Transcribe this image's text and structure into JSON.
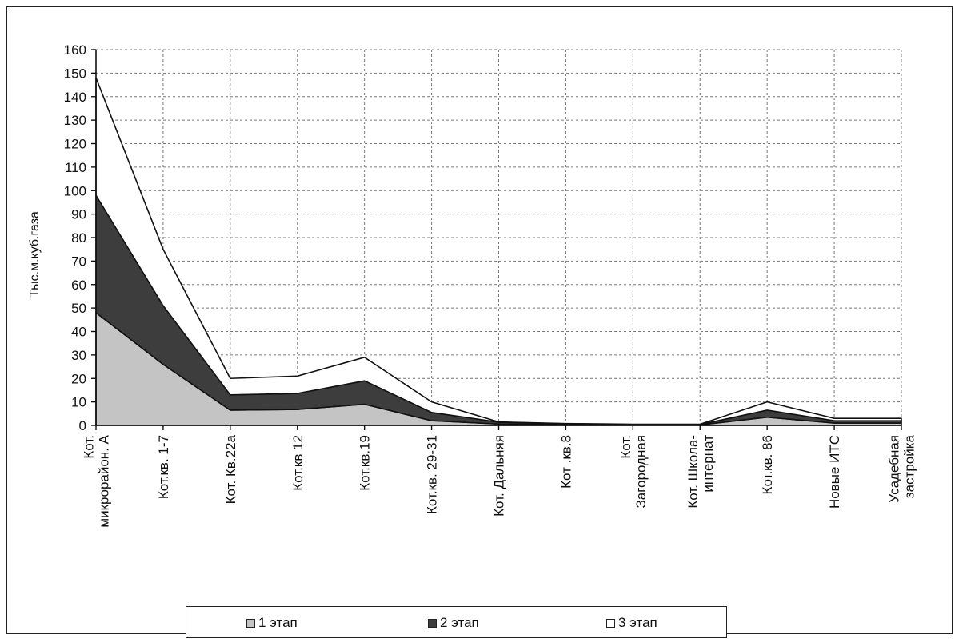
{
  "chart_data": {
    "type": "area",
    "stacked": true,
    "ylabel": "Тыс.м.куб.газа",
    "ylim": [
      0,
      160
    ],
    "yticks": [
      "0",
      "10",
      "20",
      "30",
      "40",
      "50",
      "60",
      "70",
      "80",
      "90",
      "100",
      "110",
      "120",
      "130",
      "140",
      "150",
      "160"
    ],
    "grid": true,
    "legend_position": "bottom",
    "categories": [
      [
        "Кот.",
        "микрорайон. А"
      ],
      [
        "Кот.кв. 1-7"
      ],
      [
        "Кот.  Кв.22а"
      ],
      [
        "Кот.кв 12"
      ],
      [
        "Кот.кв.19"
      ],
      [
        "Кот.кв. 29-31"
      ],
      [
        "Кот. Дальняя"
      ],
      [
        "Кот .кв.8"
      ],
      [
        "Кот.",
        "Загородная"
      ],
      [
        "Кот. Школа-",
        "интернат"
      ],
      [
        "Кот.кв. 86"
      ],
      [
        "Новые ИТС"
      ],
      [
        "Усадебная",
        "застройка"
      ]
    ],
    "series": [
      {
        "name": "1 этап",
        "color": "#c4c4c4",
        "values": [
          48,
          26,
          6.5,
          6.8,
          9,
          2,
          0.6,
          0.3,
          0.2,
          0.2,
          3.5,
          1,
          1
        ]
      },
      {
        "name": "2 этап",
        "color": "#3d3d3d",
        "values": [
          50,
          25,
          6.5,
          6.8,
          10,
          3.5,
          0.8,
          0.4,
          0.2,
          0.2,
          3,
          1,
          1
        ]
      },
      {
        "name": "3 этап",
        "color": "#ffffff",
        "values": [
          50,
          24,
          7,
          7.4,
          10,
          4.5,
          0.1,
          0.1,
          0.1,
          0.1,
          3.5,
          1,
          1
        ]
      }
    ]
  }
}
